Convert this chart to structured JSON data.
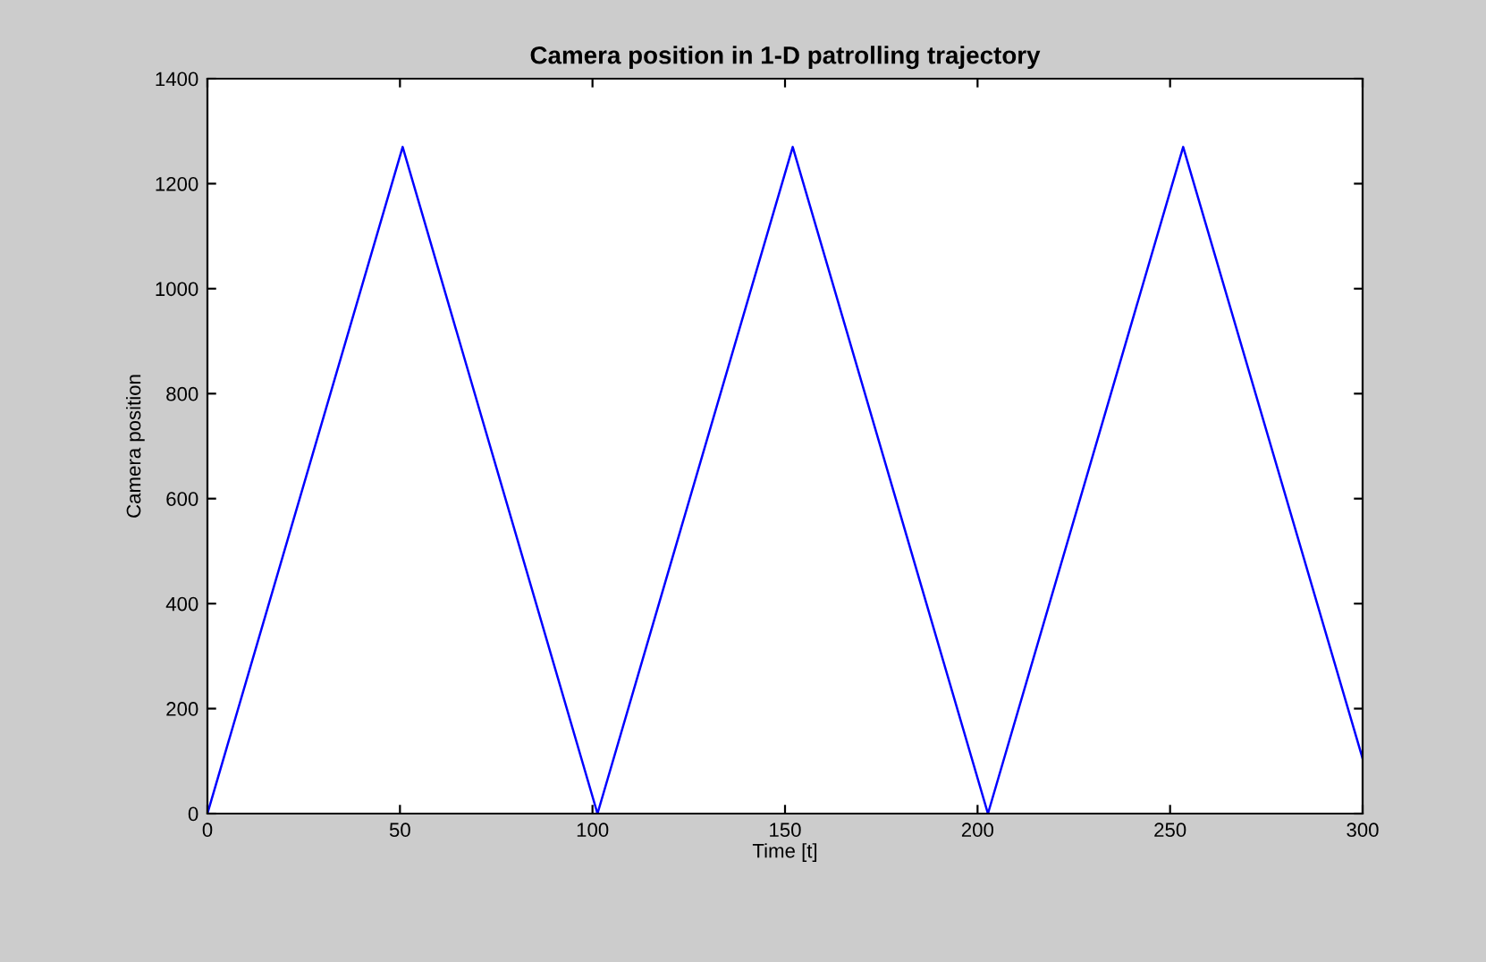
{
  "chart_data": {
    "type": "line",
    "title": "Camera position in 1-D patrolling trajectory",
    "xlabel": "Time [t]",
    "ylabel": "Camera position",
    "series": [
      {
        "color": "#0000ff",
        "x": [
          0,
          50.7,
          101.3,
          152,
          202.7,
          253.4,
          300
        ],
        "values": [
          0,
          1270,
          0,
          1270,
          0,
          1270,
          105
        ]
      }
    ],
    "xlim": [
      0,
      300
    ],
    "xticks": [
      0,
      50,
      100,
      150,
      200,
      250,
      300
    ],
    "ylim": [
      0,
      1400
    ],
    "yticks": [
      0,
      200,
      400,
      600,
      800,
      1000,
      1200,
      1400
    ],
    "grid": false,
    "legend": false
  }
}
